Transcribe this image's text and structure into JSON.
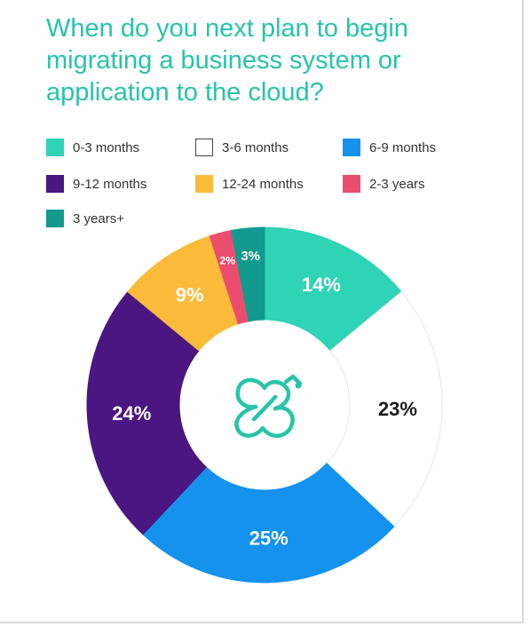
{
  "chart_data": {
    "type": "pie",
    "title": "When do you next plan to begin migrating a business system or application to the cloud?",
    "slices": [
      {
        "name": "0-3 months",
        "value": 14,
        "label": "14%",
        "color": "#2fd3b6",
        "label_color": "#ffffff"
      },
      {
        "name": "3-6 months",
        "value": 23,
        "label": "23%",
        "color": "#ffffff",
        "label_color": "#1a1a1a"
      },
      {
        "name": "6-9 months",
        "value": 25,
        "label": "25%",
        "color": "#1492ee",
        "label_color": "#ffffff"
      },
      {
        "name": "9-12 months",
        "value": 24,
        "label": "24%",
        "color": "#4b1682",
        "label_color": "#ffffff"
      },
      {
        "name": "12-24 months",
        "value": 9,
        "label": "9%",
        "color": "#fbbb3a",
        "label_color": "#ffffff"
      },
      {
        "name": "2-3 years",
        "value": 2,
        "label": "2%",
        "color": "#eb4d6f",
        "label_color": "#ffffff"
      },
      {
        "name": "3 years+",
        "value": 3,
        "label": "3%",
        "color": "#129a8e",
        "label_color": "#ffffff"
      }
    ],
    "legend_position": "top",
    "donut": true
  },
  "center_icon": "cloud-logo-icon",
  "accent_color": "#27c4a9"
}
